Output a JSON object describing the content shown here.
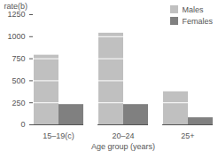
{
  "chart_data": {
    "type": "bar",
    "categories": [
      "15–19(c)",
      "20–24",
      "25+"
    ],
    "series": [
      {
        "name": "Males",
        "color": "#c0c0c0",
        "values": [
          790,
          1040,
          375
        ]
      },
      {
        "name": "Females",
        "color": "#808080",
        "values": [
          230,
          230,
          80
        ]
      }
    ],
    "x_label": "Age group (years)",
    "y_label": "rate(b)",
    "ylim": [
      0,
      1250
    ],
    "yticks": [
      0,
      250,
      500,
      750,
      1000,
      1250
    ],
    "grid": true,
    "legend": "top-right"
  }
}
